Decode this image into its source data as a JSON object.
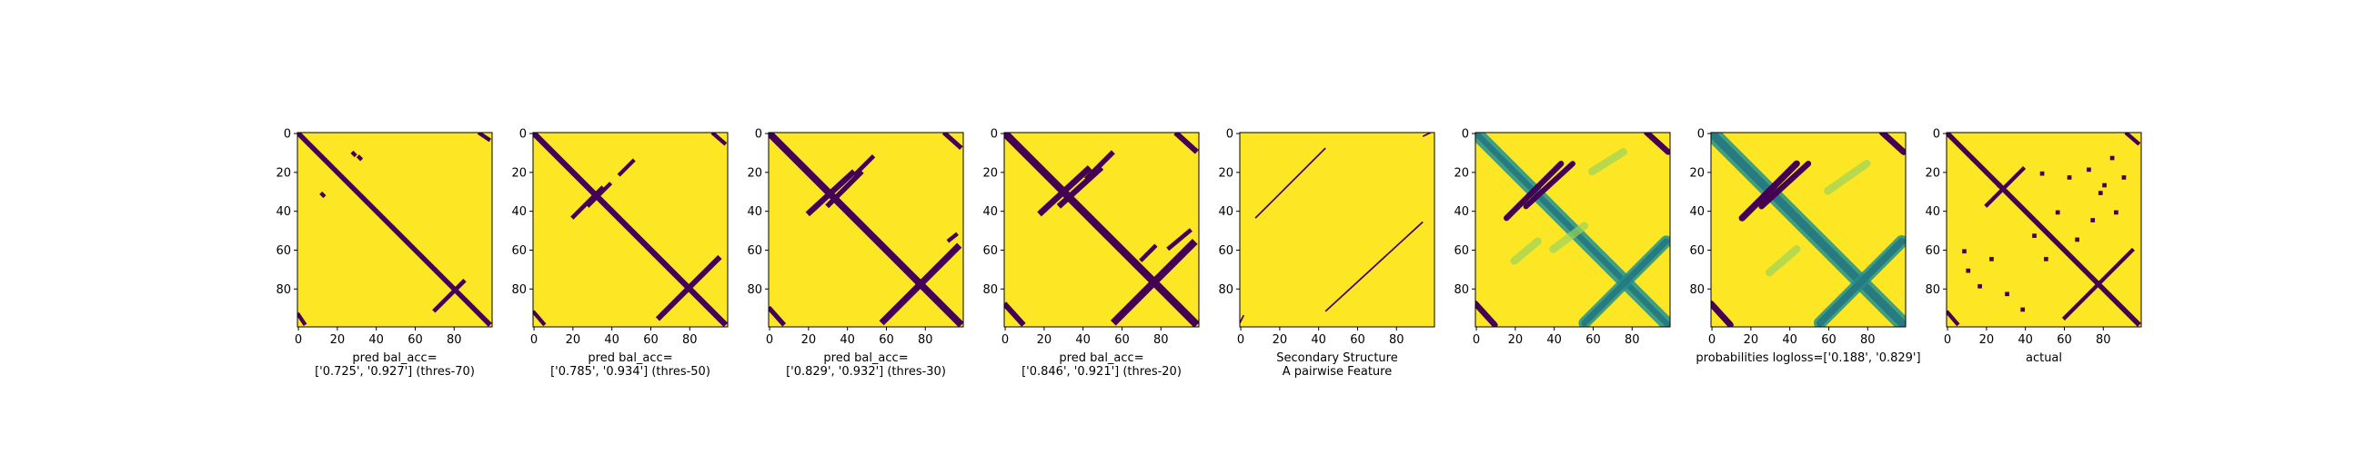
{
  "colors": {
    "background": "#FDE725",
    "structure": "#440154",
    "prob_low": "#FDE725",
    "prob_mid": "#21918C",
    "prob_high": "#440154",
    "frame": "#000000"
  },
  "chart_data": [
    {
      "type": "heatmap",
      "title": "",
      "xlabel": "pred bal_acc=\n['0.725', '0.927'] (thres-70)",
      "ylabel": "",
      "xlim": [
        0,
        99
      ],
      "ylim": [
        99,
        0
      ],
      "xticks": [
        "0",
        "20",
        "40",
        "60",
        "80"
      ],
      "yticks": [
        "0",
        "20",
        "40",
        "60",
        "80"
      ],
      "grid": false,
      "matrix_size": 100,
      "segments": [
        {
          "from": [
            0,
            0
          ],
          "to": [
            99,
            99
          ],
          "width": 2.6
        },
        {
          "from": [
            70,
            92
          ],
          "to": [
            86,
            76
          ],
          "width": 2.2
        },
        {
          "from": [
            31,
            12
          ],
          "to": [
            33,
            14
          ],
          "width": 2.0
        },
        {
          "from": [
            12,
            31
          ],
          "to": [
            14,
            33
          ],
          "width": 2.0
        },
        {
          "from": [
            28,
            10
          ],
          "to": [
            30,
            12
          ],
          "width": 2.0
        },
        {
          "from": [
            93,
            0
          ],
          "to": [
            99,
            4
          ],
          "width": 2.0
        },
        {
          "from": [
            0,
            93
          ],
          "to": [
            4,
            99
          ],
          "width": 2.0
        }
      ]
    },
    {
      "type": "heatmap",
      "title": "",
      "xlabel": "pred bal_acc=\n['0.785', '0.934'] (thres-50)",
      "ylabel": "",
      "xlim": [
        0,
        99
      ],
      "ylim": [
        99,
        0
      ],
      "xticks": [
        "0",
        "20",
        "40",
        "60",
        "80"
      ],
      "yticks": [
        "0",
        "20",
        "40",
        "60",
        "80"
      ],
      "grid": false,
      "matrix_size": 100,
      "segments": [
        {
          "from": [
            0,
            0
          ],
          "to": [
            99,
            99
          ],
          "width": 3.0
        },
        {
          "from": [
            64,
            96
          ],
          "to": [
            96,
            64
          ],
          "width": 2.8
        },
        {
          "from": [
            20,
            44
          ],
          "to": [
            36,
            28
          ],
          "width": 2.2
        },
        {
          "from": [
            28,
            38
          ],
          "to": [
            40,
            26
          ],
          "width": 2.0
        },
        {
          "from": [
            44,
            22
          ],
          "to": [
            52,
            14
          ],
          "width": 2.0
        },
        {
          "from": [
            92,
            0
          ],
          "to": [
            99,
            6
          ],
          "width": 2.0
        },
        {
          "from": [
            0,
            92
          ],
          "to": [
            6,
            99
          ],
          "width": 2.0
        }
      ]
    },
    {
      "type": "heatmap",
      "title": "",
      "xlabel": "pred bal_acc=\n['0.829', '0.932'] (thres-30)",
      "ylabel": "",
      "xlim": [
        0,
        99
      ],
      "ylim": [
        99,
        0
      ],
      "xticks": [
        "0",
        "20",
        "40",
        "60",
        "80"
      ],
      "yticks": [
        "0",
        "20",
        "40",
        "60",
        "80"
      ],
      "grid": false,
      "matrix_size": 100,
      "segments": [
        {
          "from": [
            0,
            0
          ],
          "to": [
            99,
            99
          ],
          "width": 3.6
        },
        {
          "from": [
            58,
            98
          ],
          "to": [
            98,
            58
          ],
          "width": 3.4
        },
        {
          "from": [
            20,
            42
          ],
          "to": [
            44,
            20
          ],
          "width": 3.0
        },
        {
          "from": [
            30,
            38
          ],
          "to": [
            48,
            20
          ],
          "width": 2.6
        },
        {
          "from": [
            44,
            22
          ],
          "to": [
            54,
            12
          ],
          "width": 2.2
        },
        {
          "from": [
            90,
            0
          ],
          "to": [
            99,
            8
          ],
          "width": 2.4
        },
        {
          "from": [
            0,
            90
          ],
          "to": [
            8,
            99
          ],
          "width": 2.4
        },
        {
          "from": [
            92,
            56
          ],
          "to": [
            97,
            52
          ],
          "width": 2.0
        }
      ]
    },
    {
      "type": "heatmap",
      "title": "",
      "xlabel": "pred bal_acc=\n['0.846', '0.921'] (thres-20)",
      "ylabel": "",
      "xlim": [
        0,
        99
      ],
      "ylim": [
        99,
        0
      ],
      "xticks": [
        "0",
        "20",
        "40",
        "60",
        "80"
      ],
      "yticks": [
        "0",
        "20",
        "40",
        "60",
        "80"
      ],
      "grid": false,
      "matrix_size": 100,
      "segments": [
        {
          "from": [
            0,
            0
          ],
          "to": [
            99,
            99
          ],
          "width": 4.0
        },
        {
          "from": [
            56,
            98
          ],
          "to": [
            98,
            56
          ],
          "width": 3.8
        },
        {
          "from": [
            18,
            42
          ],
          "to": [
            44,
            18
          ],
          "width": 3.2
        },
        {
          "from": [
            28,
            38
          ],
          "to": [
            50,
            18
          ],
          "width": 3.0
        },
        {
          "from": [
            42,
            24
          ],
          "to": [
            56,
            10
          ],
          "width": 2.6
        },
        {
          "from": [
            88,
            0
          ],
          "to": [
            99,
            10
          ],
          "width": 2.8
        },
        {
          "from": [
            0,
            88
          ],
          "to": [
            10,
            99
          ],
          "width": 2.8
        },
        {
          "from": [
            70,
            66
          ],
          "to": [
            78,
            58
          ],
          "width": 2.2
        },
        {
          "from": [
            84,
            60
          ],
          "to": [
            96,
            50
          ],
          "width": 2.2
        }
      ]
    },
    {
      "type": "heatmap",
      "title": "",
      "xlabel": "Secondary Structure\nA pairwise Feature",
      "ylabel": "",
      "xlim": [
        0,
        99
      ],
      "ylim": [
        99,
        0
      ],
      "xticks": [
        "0",
        "20",
        "40",
        "60",
        "80"
      ],
      "yticks": [
        "0",
        "20",
        "40",
        "60",
        "80"
      ],
      "grid": false,
      "matrix_size": 100,
      "segments": [
        {
          "from": [
            8,
            44
          ],
          "to": [
            44,
            8
          ],
          "width": 0.8
        },
        {
          "from": [
            44,
            92
          ],
          "to": [
            94,
            46
          ],
          "width": 0.8
        },
        {
          "from": [
            94,
            2
          ],
          "to": [
            98,
            0
          ],
          "width": 0.8
        },
        {
          "from": [
            0,
            98
          ],
          "to": [
            2,
            94
          ],
          "width": 0.8
        }
      ]
    },
    {
      "type": "heatmap",
      "title": "",
      "xlabel": "",
      "ylabel": "",
      "xlim": [
        0,
        99
      ],
      "ylim": [
        99,
        0
      ],
      "xticks": [
        "0",
        "20",
        "40",
        "60",
        "80"
      ],
      "yticks": [
        "0",
        "20",
        "40",
        "60",
        "80"
      ],
      "grid": false,
      "matrix_size": 100,
      "blobs": [
        {
          "from": [
            0,
            0
          ],
          "to": [
            99,
            99
          ],
          "width": 3.0,
          "level": "high"
        },
        {
          "from": [
            0,
            0
          ],
          "to": [
            99,
            99
          ],
          "width": 7.0,
          "level": "mid"
        },
        {
          "from": [
            56,
            98
          ],
          "to": [
            98,
            56
          ],
          "width": 3.2,
          "level": "high"
        },
        {
          "from": [
            56,
            98
          ],
          "to": [
            98,
            56
          ],
          "width": 6.0,
          "level": "mid"
        },
        {
          "from": [
            16,
            44
          ],
          "to": [
            44,
            16
          ],
          "width": 3.0,
          "level": "high"
        },
        {
          "from": [
            26,
            38
          ],
          "to": [
            50,
            16
          ],
          "width": 2.8,
          "level": "high"
        },
        {
          "from": [
            88,
            0
          ],
          "to": [
            99,
            10
          ],
          "width": 3.0,
          "level": "high"
        },
        {
          "from": [
            0,
            88
          ],
          "to": [
            10,
            99
          ],
          "width": 3.0,
          "level": "high"
        },
        {
          "from": [
            40,
            60
          ],
          "to": [
            56,
            48
          ],
          "width": 4.0,
          "level": "low-mid"
        },
        {
          "from": [
            60,
            20
          ],
          "to": [
            76,
            10
          ],
          "width": 4.0,
          "level": "low-mid"
        },
        {
          "from": [
            20,
            66
          ],
          "to": [
            32,
            56
          ],
          "width": 4.0,
          "level": "low-mid"
        }
      ]
    },
    {
      "type": "heatmap",
      "title": "",
      "xlabel": "probabilities logloss=['0.188', '0.829']",
      "ylabel": "",
      "xlim": [
        0,
        99
      ],
      "ylim": [
        99,
        0
      ],
      "xticks": [
        "0",
        "20",
        "40",
        "60",
        "80"
      ],
      "yticks": [
        "0",
        "20",
        "40",
        "60",
        "80"
      ],
      "grid": false,
      "matrix_size": 100,
      "blobs": [
        {
          "from": [
            0,
            0
          ],
          "to": [
            99,
            99
          ],
          "width": 4.2,
          "level": "high"
        },
        {
          "from": [
            0,
            0
          ],
          "to": [
            99,
            99
          ],
          "width": 8.0,
          "level": "mid"
        },
        {
          "from": [
            56,
            98
          ],
          "to": [
            98,
            56
          ],
          "width": 3.6,
          "level": "high"
        },
        {
          "from": [
            56,
            98
          ],
          "to": [
            98,
            56
          ],
          "width": 6.4,
          "level": "mid"
        },
        {
          "from": [
            16,
            44
          ],
          "to": [
            44,
            16
          ],
          "width": 3.4,
          "level": "high"
        },
        {
          "from": [
            26,
            38
          ],
          "to": [
            50,
            16
          ],
          "width": 3.0,
          "level": "high"
        },
        {
          "from": [
            88,
            0
          ],
          "to": [
            99,
            10
          ],
          "width": 3.2,
          "level": "high"
        },
        {
          "from": [
            0,
            88
          ],
          "to": [
            10,
            99
          ],
          "width": 3.2,
          "level": "high"
        },
        {
          "from": [
            60,
            30
          ],
          "to": [
            80,
            16
          ],
          "width": 4.0,
          "level": "low-mid"
        },
        {
          "from": [
            30,
            72
          ],
          "to": [
            44,
            60
          ],
          "width": 4.0,
          "level": "low-mid"
        }
      ]
    },
    {
      "type": "heatmap",
      "title": "",
      "xlabel": "actual",
      "ylabel": "",
      "xlim": [
        0,
        99
      ],
      "ylim": [
        99,
        0
      ],
      "xticks": [
        "0",
        "20",
        "40",
        "60",
        "80"
      ],
      "yticks": [
        "0",
        "20",
        "40",
        "60",
        "80"
      ],
      "grid": false,
      "matrix_size": 100,
      "segments": [
        {
          "from": [
            0,
            0
          ],
          "to": [
            99,
            99
          ],
          "width": 2.6
        },
        {
          "from": [
            60,
            96
          ],
          "to": [
            96,
            60
          ],
          "width": 2.0
        },
        {
          "from": [
            20,
            38
          ],
          "to": [
            40,
            18
          ],
          "width": 2.0
        },
        {
          "from": [
            92,
            0
          ],
          "to": [
            99,
            6
          ],
          "width": 2.0
        },
        {
          "from": [
            0,
            92
          ],
          "to": [
            6,
            99
          ],
          "width": 2.0
        }
      ],
      "spots": [
        [
          48,
          20
        ],
        [
          62,
          22
        ],
        [
          72,
          18
        ],
        [
          80,
          26
        ],
        [
          86,
          40
        ],
        [
          56,
          40
        ],
        [
          66,
          54
        ],
        [
          10,
          70
        ],
        [
          16,
          78
        ],
        [
          30,
          82
        ],
        [
          38,
          90
        ],
        [
          22,
          64
        ],
        [
          78,
          30
        ],
        [
          90,
          22
        ],
        [
          50,
          64
        ],
        [
          44,
          52
        ],
        [
          26,
          26
        ],
        [
          8,
          60
        ],
        [
          74,
          44
        ],
        [
          84,
          12
        ]
      ]
    }
  ]
}
